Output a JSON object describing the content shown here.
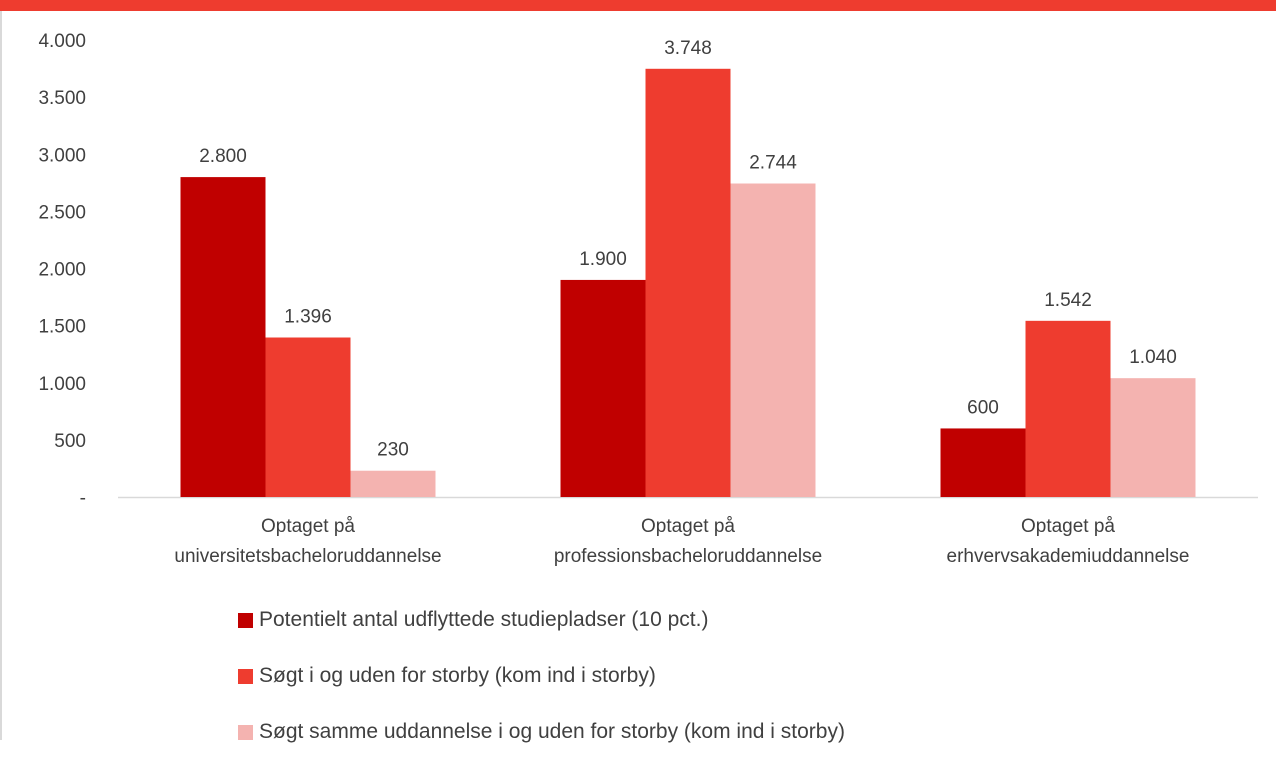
{
  "colors": {
    "accent_bar": "#ee3c2f",
    "series": [
      "#c00000",
      "#ee3c2f",
      "#f4b3b0"
    ],
    "axis": "#d9d9d9",
    "text": "#404040"
  },
  "chart_data": {
    "type": "bar",
    "categories": [
      [
        "Optaget på",
        "universitetsbacheloruddannelse"
      ],
      [
        "Optaget på",
        "professionsbacheloruddannelse"
      ],
      [
        "Optaget på",
        "erhvervsakademiuddannelse"
      ]
    ],
    "series": [
      {
        "name": "Potentielt antal udflyttede studiepladser (10 pct.)",
        "values": [
          2800,
          1900,
          600
        ],
        "labels": [
          "2.800",
          "1.900",
          "600"
        ]
      },
      {
        "name": "Søgt i og uden for storby (kom ind i storby)",
        "values": [
          1396,
          3748,
          1542
        ],
        "labels": [
          "1.396",
          "3.748",
          "1.542"
        ]
      },
      {
        "name": "Søgt samme uddannelse i og uden for storby (kom ind i storby)",
        "values": [
          230,
          2744,
          1040
        ],
        "labels": [
          "230",
          "2.744",
          "1.040"
        ]
      }
    ],
    "ylim": [
      0,
      4000
    ],
    "yticks": [
      0,
      500,
      1000,
      1500,
      2000,
      2500,
      3000,
      3500,
      4000
    ],
    "ytick_labels": [
      "-",
      "500",
      "1.000",
      "1.500",
      "2.000",
      "2.500",
      "3.000",
      "3.500",
      "4.000"
    ],
    "grid": false,
    "legend_position": "bottom"
  }
}
